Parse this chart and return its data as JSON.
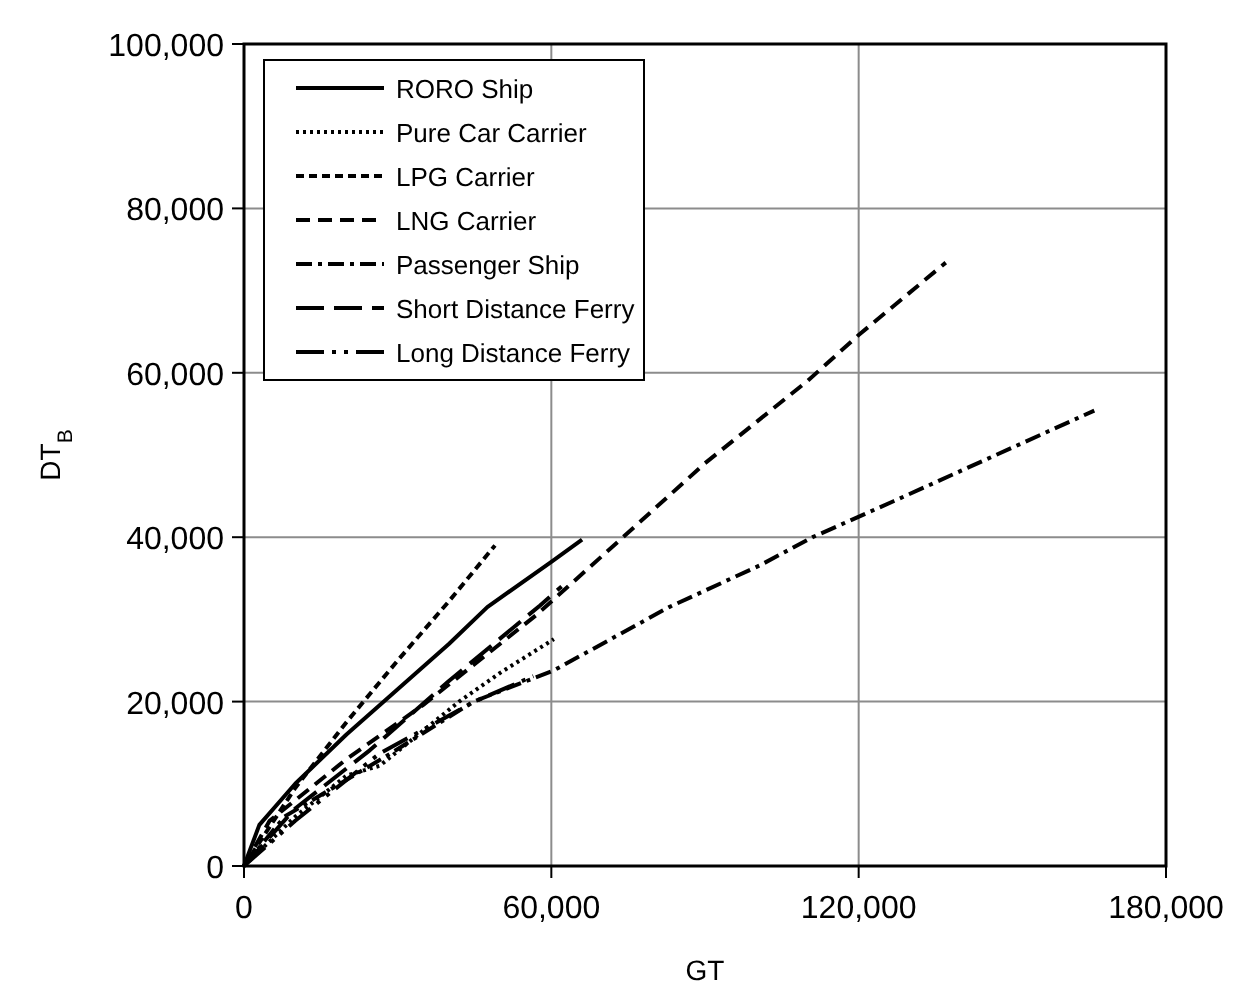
{
  "chart_data": {
    "type": "line",
    "xlabel": "GT",
    "ylabel": "DT$_{B}$",
    "xlim": [
      0,
      180000
    ],
    "ylim": [
      0,
      100000
    ],
    "xticks": [
      {
        "value": 0,
        "label": "0"
      },
      {
        "value": 60000,
        "label": "60,000"
      },
      {
        "value": 120000,
        "label": "120,000"
      },
      {
        "value": 180000,
        "label": "180,000"
      }
    ],
    "yticks": [
      {
        "value": 0,
        "label": "0"
      },
      {
        "value": 20000,
        "label": "20,000"
      },
      {
        "value": 40000,
        "label": "40,000"
      },
      {
        "value": 60000,
        "label": "60,000"
      },
      {
        "value": 80000,
        "label": "80,000"
      },
      {
        "value": 100000,
        "label": "100,000"
      }
    ],
    "grid": true,
    "legend": "top left",
    "series": [
      {
        "name": "RORO Ship",
        "color": "#000000",
        "line_style": "solid",
        "x": [
          0,
          3000,
          10000,
          20000,
          27300,
          40000,
          47500,
          60000,
          66000
        ],
        "values": [
          0,
          5000,
          10000,
          16000,
          20000,
          27000,
          31500,
          37000,
          39700
        ]
      },
      {
        "name": "Pure Car Carrier",
        "color": "#000000",
        "line_style": "dotted",
        "x": [
          0,
          10000,
          20000,
          26500,
          42000,
          50000,
          60500
        ],
        "values": [
          0,
          6000,
          11000,
          12200,
          20000,
          23500,
          27600
        ]
      },
      {
        "name": "LPG Carrier",
        "color": "#000000",
        "line_style": "dashed",
        "x": [
          0,
          10000,
          20000,
          30000,
          40000,
          49000
        ],
        "values": [
          0,
          9500,
          17500,
          25000,
          32200,
          39000
        ]
      },
      {
        "name": "LNG Carrier",
        "color": "#000000",
        "line_style": "dashed",
        "x": [
          0,
          5000,
          20000,
          35000,
          57000,
          74000,
          90000,
          110000,
          120000,
          137000
        ],
        "values": [
          0,
          5500,
          13000,
          19600,
          30500,
          40000,
          49000,
          59000,
          64600,
          73400
        ]
      },
      {
        "name": "Passenger Ship",
        "color": "#000000",
        "line_style": "dashed",
        "x": [
          0,
          7900,
          28400,
          44800,
          60500,
          83000,
          100800,
          111000,
          126900,
          166000
        ],
        "values": [
          0,
          6000,
          13600,
          20000,
          23800,
          31500,
          36600,
          40000,
          44400,
          55400
        ]
      },
      {
        "name": "Short Distance Ferry",
        "color": "#000000",
        "line_style": "dashed",
        "x": [
          0,
          10000,
          24600,
          40000,
          57800,
          62000
        ],
        "values": [
          0,
          7000,
          14100,
          22500,
          31700,
          34000
        ]
      },
      {
        "name": "Long Distance Ferry",
        "color": "#000000",
        "line_style": "dashed",
        "x": [
          0,
          10000,
          26500,
          45000,
          56500
        ],
        "values": [
          0,
          5500,
          13700,
          20000,
          23100
        ]
      }
    ]
  }
}
